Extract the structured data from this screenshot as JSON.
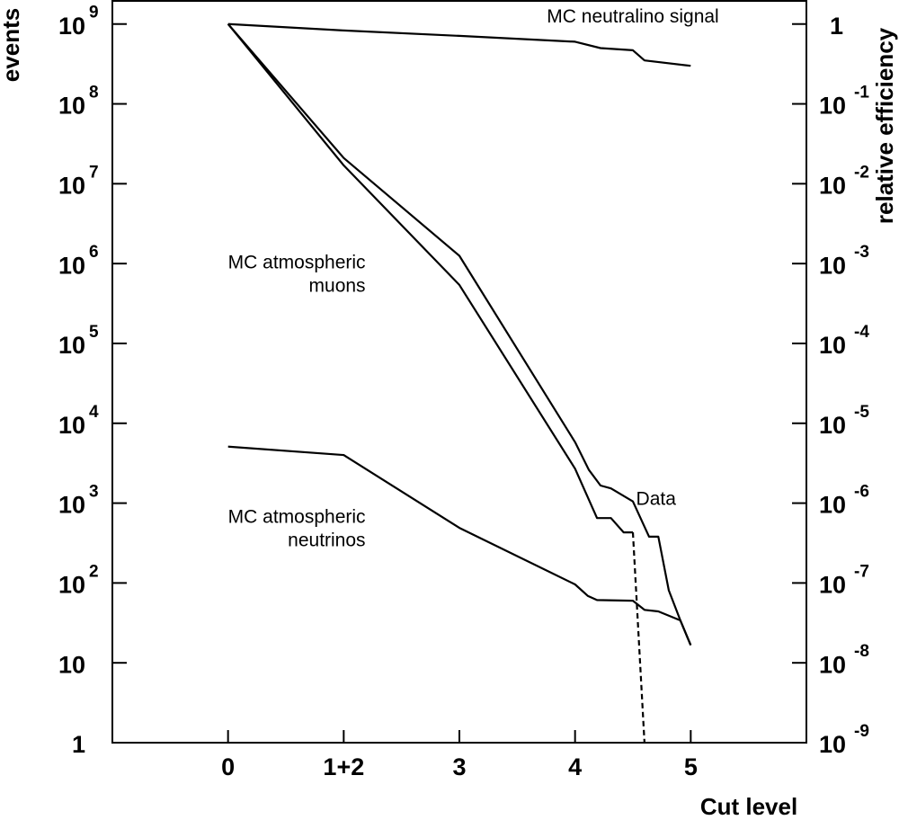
{
  "chart_data": {
    "type": "line",
    "x_label": "Cut level",
    "y_label": "events",
    "y2_label": "relative efficiency",
    "log_y": true,
    "log_y2": true,
    "xlim": [
      -1,
      5
    ],
    "xticks": [
      {
        "value": 0,
        "label": "0"
      },
      {
        "value": 1,
        "label": "1+2"
      },
      {
        "value": 2,
        "label": "3"
      },
      {
        "value": 3,
        "label": "4"
      },
      {
        "value": 4,
        "label": "5"
      }
    ],
    "ylim": [
      1,
      2000000000
    ],
    "yticks": [
      1,
      10,
      {
        "value": 100,
        "label": "10",
        "exponent": "2"
      },
      {
        "value": 1000,
        "label": "10",
        "exponent": "3"
      },
      {
        "value": 10000,
        "label": "10",
        "exponent": "4"
      },
      {
        "value": 100000,
        "label": "10",
        "exponent": "5"
      },
      {
        "value": 1000000,
        "label": "10",
        "exponent": "6"
      },
      {
        "value": 10000000,
        "label": "10",
        "exponent": "7"
      },
      {
        "value": 100000000,
        "label": "10",
        "exponent": "8"
      },
      {
        "value": 1000000000,
        "label": "10",
        "exponent": "9"
      }
    ],
    "y2lim": [
      1e-09,
      2
    ],
    "y2ticks": [
      {
        "value": 1e-09,
        "label": "10",
        "exponent": "-9"
      },
      {
        "value": 1e-08,
        "label": "10",
        "exponent": "-8"
      },
      {
        "value": 1e-07,
        "label": "10",
        "exponent": "-7"
      },
      {
        "value": 1e-06,
        "label": "10",
        "exponent": "-6"
      },
      {
        "value": 1e-05,
        "label": "10",
        "exponent": "-5"
      },
      {
        "value": 0.0001,
        "label": "10",
        "exponent": "-4"
      },
      {
        "value": 0.001,
        "label": "10",
        "exponent": "-3"
      },
      {
        "value": 0.01,
        "label": "10",
        "exponent": "-2"
      },
      {
        "value": 0.1,
        "label": "10",
        "exponent": "-1"
      },
      1
    ],
    "series": [
      {
        "color": "#000000",
        "dash": false,
        "axis": "y2",
        "x": [
          0,
          1,
          2,
          3,
          3.22,
          3.5,
          3.6,
          4
        ],
        "values": [
          1,
          0.83,
          0.71,
          0.6,
          0.5,
          0.47,
          0.35,
          0.3
        ]
      },
      {
        "color": "#000000",
        "dash": false,
        "x": [
          0,
          1,
          2,
          3,
          3.12,
          3.22,
          3.31,
          3.5,
          3.64,
          3.72,
          3.81,
          3.91,
          4
        ],
        "values": [
          1000000000,
          21000000,
          1250000,
          5800,
          2600,
          1660,
          1530,
          1050,
          380,
          380,
          81,
          34,
          16.6
        ]
      },
      {
        "color": "#000000",
        "dash": false,
        "x": [
          0,
          1,
          2,
          3,
          3.19,
          3.31,
          3.42,
          3.5
        ],
        "values": [
          1000000000,
          17000000,
          540000,
          2700,
          650,
          650,
          430,
          430
        ]
      },
      {
        "color": "#000000",
        "dash": true,
        "x": [
          3.5,
          3.6
        ],
        "values": [
          430,
          1
        ]
      },
      {
        "color": "#000000",
        "dash": false,
        "x": [
          0,
          1,
          2,
          3,
          3.11,
          3.19,
          3.5,
          3.6,
          3.72,
          3.91,
          4
        ],
        "values": [
          5100,
          4000,
          490,
          96,
          69,
          61,
          60,
          46,
          44,
          34,
          16.6
        ]
      }
    ],
    "annotations": [
      {
        "lines": [
          "MC neutralino signal"
        ],
        "x": 3.5,
        "y": 1200000000,
        "anchor": "middle"
      },
      {
        "lines": [
          "MC atmospheric",
          "muons"
        ],
        "x": 0,
        "y": 1000000,
        "anchor": "start"
      },
      {
        "lines": [
          "Data"
        ],
        "x": 3.7,
        "y": 1100,
        "anchor": "middle"
      },
      {
        "lines": [
          "MC atmospheric",
          "neutrinos"
        ],
        "x": 0,
        "y": 650,
        "anchor": "start"
      }
    ]
  }
}
